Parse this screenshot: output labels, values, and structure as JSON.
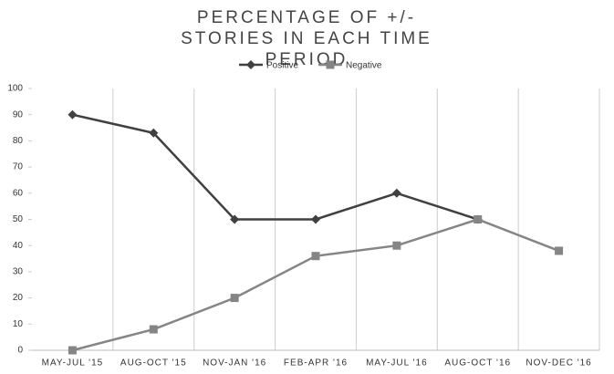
{
  "chart_data": {
    "type": "line",
    "title": "PERCENTAGE OF +/-STORIES IN EACH TIME PERIOD",
    "categories": [
      "MAY-JUL '15",
      "AUG-OCT '15",
      "NOV-JAN '16",
      "FEB-APR '16",
      "MAY-JUL '16",
      "AUG-OCT '16",
      "NOV-DEC '16"
    ],
    "series": [
      {
        "name": "Positive",
        "color": "#404040",
        "marker": "diamond",
        "values": [
          90,
          83,
          50,
          50,
          60,
          50,
          null
        ]
      },
      {
        "name": "Negative",
        "color": "#858585",
        "marker": "square",
        "values": [
          0,
          8,
          20,
          36,
          40,
          50,
          38
        ]
      }
    ],
    "ylim": [
      0,
      100
    ],
    "yticks": [
      0,
      10,
      20,
      30,
      40,
      50,
      60,
      70,
      80,
      90,
      100
    ],
    "legend": "top"
  }
}
